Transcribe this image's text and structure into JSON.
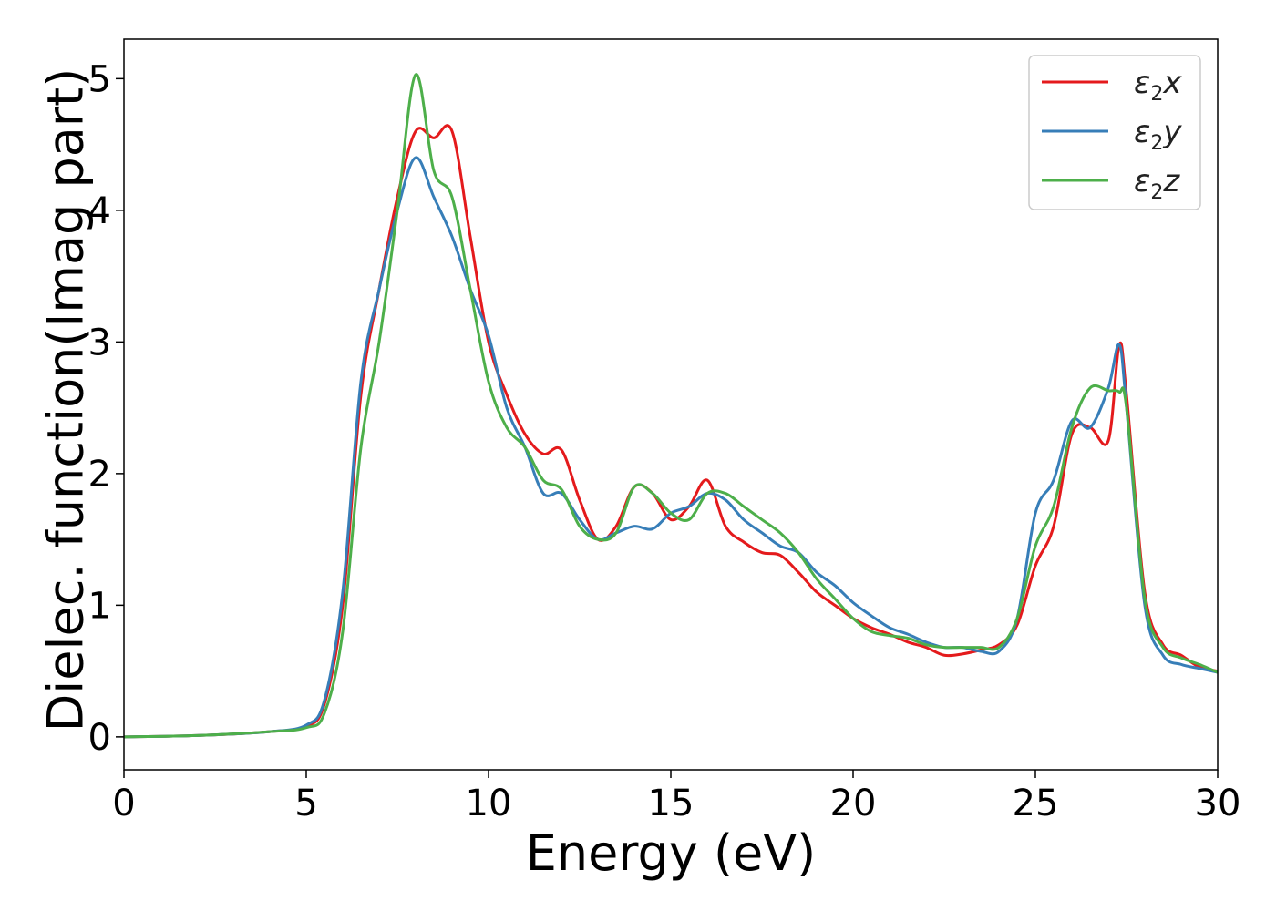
{
  "chart_data": {
    "type": "line",
    "title": "",
    "xlabel": "Energy (eV)",
    "ylabel": "Dielec. function(Imag part)",
    "xlim": [
      0,
      30
    ],
    "ylim": [
      -0.25,
      5.3
    ],
    "xticks": [
      0,
      5,
      10,
      15,
      20,
      25,
      30
    ],
    "yticks": [
      0,
      1,
      2,
      3,
      4,
      5
    ],
    "grid": false,
    "legend": "top-right",
    "series": [
      {
        "name": "ε2x",
        "legend_symbol": "ε",
        "legend_sub": "2",
        "legend_var": "x",
        "color": "#e41a1c",
        "x": [
          0,
          2,
          4,
          5,
          5.5,
          6,
          6.5,
          7,
          7.5,
          8,
          8.5,
          9,
          9.5,
          10,
          10.5,
          11,
          11.5,
          12,
          12.5,
          13,
          13.5,
          14,
          14.5,
          15,
          15.5,
          16,
          16.5,
          17,
          17.5,
          18,
          18.5,
          19,
          19.5,
          20,
          20.5,
          21,
          21.5,
          22,
          22.5,
          23,
          23.5,
          24,
          24.5,
          25,
          25.5,
          26,
          26.5,
          27,
          27.3,
          27.5,
          28,
          28.5,
          29,
          29.5,
          30
        ],
        "y": [
          0.0,
          0.01,
          0.04,
          0.08,
          0.25,
          1.0,
          2.6,
          3.4,
          4.1,
          4.6,
          4.55,
          4.6,
          3.8,
          3.0,
          2.6,
          2.3,
          2.15,
          2.18,
          1.8,
          1.5,
          1.6,
          1.9,
          1.85,
          1.65,
          1.75,
          1.95,
          1.6,
          1.48,
          1.4,
          1.38,
          1.25,
          1.1,
          1.0,
          0.9,
          0.83,
          0.78,
          0.72,
          0.68,
          0.62,
          0.63,
          0.66,
          0.7,
          0.85,
          1.3,
          1.6,
          2.3,
          2.35,
          2.25,
          2.98,
          2.6,
          1.1,
          0.7,
          0.62,
          0.53,
          0.5
        ]
      },
      {
        "name": "ε2y",
        "legend_symbol": "ε",
        "legend_sub": "2",
        "legend_var": "y",
        "color": "#377eb8",
        "x": [
          0,
          2,
          4,
          5,
          5.5,
          6,
          6.5,
          7,
          7.5,
          8,
          8.5,
          9,
          9.5,
          10,
          10.5,
          11,
          11.5,
          12,
          12.5,
          13,
          13.5,
          14,
          14.5,
          15,
          15.5,
          16,
          16.5,
          17,
          17.5,
          18,
          18.5,
          19,
          19.5,
          20,
          20.5,
          21,
          21.5,
          22,
          22.5,
          23,
          23.5,
          24,
          24.5,
          25,
          25.5,
          26,
          26.5,
          27,
          27.3,
          27.5,
          28,
          28.5,
          29,
          29.5,
          30
        ],
        "y": [
          0.0,
          0.01,
          0.04,
          0.09,
          0.28,
          1.1,
          2.7,
          3.4,
          4.0,
          4.4,
          4.1,
          3.8,
          3.4,
          3.05,
          2.5,
          2.2,
          1.85,
          1.85,
          1.65,
          1.5,
          1.55,
          1.6,
          1.58,
          1.7,
          1.75,
          1.85,
          1.8,
          1.65,
          1.55,
          1.45,
          1.4,
          1.25,
          1.15,
          1.02,
          0.92,
          0.83,
          0.78,
          0.72,
          0.68,
          0.68,
          0.65,
          0.65,
          0.9,
          1.7,
          1.95,
          2.4,
          2.35,
          2.65,
          2.98,
          2.5,
          1.0,
          0.62,
          0.55,
          0.52,
          0.49
        ]
      },
      {
        "name": "ε2z",
        "legend_symbol": "ε",
        "legend_sub": "2",
        "legend_var": "z",
        "color": "#4daf4a",
        "x": [
          0,
          2,
          4,
          5,
          5.5,
          6,
          6.5,
          7,
          7.5,
          8,
          8.5,
          9,
          9.5,
          10,
          10.5,
          11,
          11.5,
          12,
          12.5,
          13,
          13.5,
          14,
          14.5,
          15,
          15.5,
          16,
          16.5,
          17,
          17.5,
          18,
          18.5,
          19,
          19.5,
          20,
          20.5,
          21,
          21.5,
          22,
          22.5,
          23,
          23.5,
          24,
          24.5,
          25,
          25.5,
          26,
          26.5,
          27,
          27.3,
          27.5,
          28,
          28.5,
          29,
          29.5,
          30
        ],
        "y": [
          0.0,
          0.01,
          0.04,
          0.07,
          0.18,
          0.8,
          2.2,
          3.0,
          4.0,
          5.03,
          4.3,
          4.1,
          3.4,
          2.7,
          2.35,
          2.2,
          1.95,
          1.88,
          1.6,
          1.5,
          1.55,
          1.9,
          1.85,
          1.7,
          1.65,
          1.85,
          1.85,
          1.75,
          1.65,
          1.55,
          1.4,
          1.2,
          1.05,
          0.9,
          0.8,
          0.77,
          0.75,
          0.7,
          0.68,
          0.68,
          0.68,
          0.68,
          0.9,
          1.45,
          1.75,
          2.35,
          2.65,
          2.63,
          2.62,
          2.5,
          1.05,
          0.68,
          0.6,
          0.55,
          0.49
        ]
      }
    ]
  }
}
